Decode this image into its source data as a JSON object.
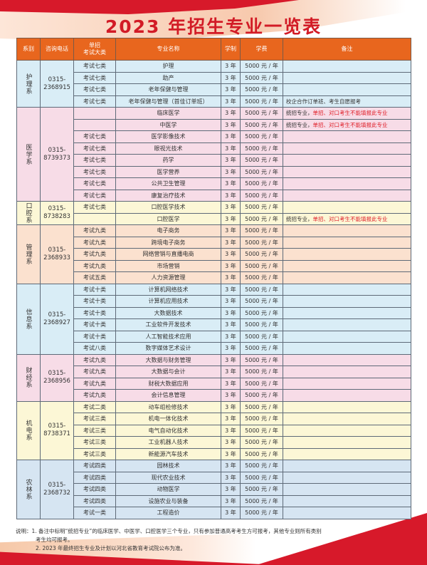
{
  "title": "2023 年招生专业一览表",
  "headers": [
    "系别",
    "咨询电话",
    "单招\n考试大类",
    "专业名称",
    "学制",
    "学费",
    "备注"
  ],
  "colors": {
    "title": "#d21b26",
    "header": "#e8661e",
    "note_red": "#e0202a"
  },
  "departments": [
    {
      "name": "护理系",
      "phone": "0315-\n2368915",
      "bg": "#d9edf6",
      "rows": [
        {
          "cat": "考试七类",
          "major": "护理",
          "years": "3 年",
          "fee": "5000 元 / 年",
          "note": ""
        },
        {
          "cat": "考试七类",
          "major": "助产",
          "years": "3 年",
          "fee": "5000 元 / 年",
          "note": ""
        },
        {
          "cat": "考试七类",
          "major": "老年保健与管理",
          "years": "3 年",
          "fee": "5000 元 / 年",
          "note": ""
        },
        {
          "cat": "考试七类",
          "major": "老年保健与管理（首佳订单班）",
          "years": "3 年",
          "fee": "5000 元 / 年",
          "note": "校企合作订单班、考生自愿报考"
        }
      ]
    },
    {
      "name": "医学系",
      "phone": "0315-\n8739373",
      "bg": "#f7dce7",
      "rows": [
        {
          "cat": "",
          "major": "临床医学",
          "years": "3 年",
          "fee": "5000 元 / 年",
          "note": "统招专业，",
          "note_red": "单招、对口考生不能填报此专业"
        },
        {
          "cat": "",
          "major": "中医学",
          "years": "3 年",
          "fee": "5000 元 / 年",
          "note": "统招专业，",
          "note_red": "单招、对口考生不能填报此专业"
        },
        {
          "cat": "考试七类",
          "major": "医学影像技术",
          "years": "3 年",
          "fee": "5000 元 / 年",
          "note": ""
        },
        {
          "cat": "考试七类",
          "major": "眼视光技术",
          "years": "3 年",
          "fee": "5000 元 / 年",
          "note": ""
        },
        {
          "cat": "考试七类",
          "major": "药学",
          "years": "3 年",
          "fee": "5000 元 / 年",
          "note": ""
        },
        {
          "cat": "考试七类",
          "major": "医学营养",
          "years": "3 年",
          "fee": "5000 元 / 年",
          "note": ""
        },
        {
          "cat": "考试七类",
          "major": "公共卫生管理",
          "years": "3 年",
          "fee": "5000 元 / 年",
          "note": ""
        },
        {
          "cat": "考试七类",
          "major": "康复治疗技术",
          "years": "3 年",
          "fee": "5000 元 / 年",
          "note": ""
        }
      ]
    },
    {
      "name": "口腔系",
      "phone": "0315-\n8738283",
      "bg": "#fcf7d6",
      "rows": [
        {
          "cat": "考试七类",
          "major": "口腔医学技术",
          "years": "3 年",
          "fee": "5000 元 / 年",
          "note": ""
        },
        {
          "cat": "",
          "major": "口腔医学",
          "years": "3 年",
          "fee": "5000 元 / 年",
          "note": "统招专业，",
          "note_red": "单招、对口考生不能填报此专业"
        }
      ]
    },
    {
      "name": "管理系",
      "phone": "0315-\n2368933",
      "bg": "#fbe1cf",
      "rows": [
        {
          "cat": "考试九类",
          "major": "电子商务",
          "years": "3 年",
          "fee": "5000 元 / 年",
          "note": ""
        },
        {
          "cat": "考试九类",
          "major": "跨境电子商务",
          "years": "3 年",
          "fee": "5000 元 / 年",
          "note": ""
        },
        {
          "cat": "考试九类",
          "major": "网络营销与直播电商",
          "years": "3 年",
          "fee": "5000 元 / 年",
          "note": ""
        },
        {
          "cat": "考试九类",
          "major": "市场营销",
          "years": "3 年",
          "fee": "5000 元 / 年",
          "note": ""
        },
        {
          "cat": "考试五类",
          "major": "人力资源管理",
          "years": "3 年",
          "fee": "5000 元 / 年",
          "note": ""
        }
      ]
    },
    {
      "name": "信息系",
      "phone": "0315-\n2368927",
      "bg": "#d9edf6",
      "rows": [
        {
          "cat": "考试十类",
          "major": "计算机网络技术",
          "years": "3 年",
          "fee": "5000 元 / 年",
          "note": ""
        },
        {
          "cat": "考试十类",
          "major": "计算机应用技术",
          "years": "3 年",
          "fee": "5000 元 / 年",
          "note": ""
        },
        {
          "cat": "考试十类",
          "major": "大数据技术",
          "years": "3 年",
          "fee": "5000 元 / 年",
          "note": ""
        },
        {
          "cat": "考试十类",
          "major": "工业软件开发技术",
          "years": "3 年",
          "fee": "5000 元 / 年",
          "note": ""
        },
        {
          "cat": "考试十类",
          "major": "人工智能技术应用",
          "years": "3 年",
          "fee": "5000 元 / 年",
          "note": ""
        },
        {
          "cat": "考试八类",
          "major": "数字媒体艺术设计",
          "years": "3 年",
          "fee": "5000 元 / 年",
          "note": ""
        }
      ]
    },
    {
      "name": "财经系",
      "phone": "0315-\n2368956",
      "bg": "#f7dce7",
      "rows": [
        {
          "cat": "考试九类",
          "major": "大数据与财务管理",
          "years": "3 年",
          "fee": "5000 元 / 年",
          "note": ""
        },
        {
          "cat": "考试九类",
          "major": "大数据与会计",
          "years": "3 年",
          "fee": "5000 元 / 年",
          "note": ""
        },
        {
          "cat": "考试九类",
          "major": "财税大数据应用",
          "years": "3 年",
          "fee": "5000 元 / 年",
          "note": ""
        },
        {
          "cat": "考试九类",
          "major": "会计信息管理",
          "years": "3 年",
          "fee": "5000 元 / 年",
          "note": ""
        }
      ]
    },
    {
      "name": "机电系",
      "phone": "0315-\n8738371",
      "bg": "#fcf7d6",
      "rows": [
        {
          "cat": "考试二类",
          "major": "动车组检修技术",
          "years": "3 年",
          "fee": "5000 元 / 年",
          "note": ""
        },
        {
          "cat": "考试三类",
          "major": "机电一体化技术",
          "years": "3 年",
          "fee": "5000 元 / 年",
          "note": ""
        },
        {
          "cat": "考试三类",
          "major": "电气自动化技术",
          "years": "3 年",
          "fee": "5000 元 / 年",
          "note": ""
        },
        {
          "cat": "考试三类",
          "major": "工业机器人技术",
          "years": "3 年",
          "fee": "5000 元 / 年",
          "note": ""
        },
        {
          "cat": "考试三类",
          "major": "新能源汽车技术",
          "years": "3 年",
          "fee": "5000 元 / 年",
          "note": ""
        }
      ]
    },
    {
      "name": "农林系",
      "phone": "0315-\n2368732",
      "bg": "#d6e5f2",
      "rows": [
        {
          "cat": "考试四类",
          "major": "园林技术",
          "years": "3 年",
          "fee": "5000 元 / 年",
          "note": ""
        },
        {
          "cat": "考试四类",
          "major": "现代农业技术",
          "years": "3 年",
          "fee": "5000 元 / 年",
          "note": ""
        },
        {
          "cat": "考试四类",
          "major": "动物医学",
          "years": "3 年",
          "fee": "5000 元 / 年",
          "note": ""
        },
        {
          "cat": "考试四类",
          "major": "设施农业与装备",
          "years": "3 年",
          "fee": "5000 元 / 年",
          "note": ""
        },
        {
          "cat": "考试一类",
          "major": "工程造价",
          "years": "3 年",
          "fee": "5000 元 / 年",
          "note": ""
        }
      ]
    }
  ],
  "notes": {
    "line1": "说明：1. 备注中标明“统招专业”的临床医学、中医学、口腔医学三个专业，只有参加普通高考考生方可报考，其他专业则所有类别",
    "line1b": "考生均可报考。",
    "line2": "2. 2023 年最终招生专业及计划以河北省教育考试院公布为准。"
  }
}
